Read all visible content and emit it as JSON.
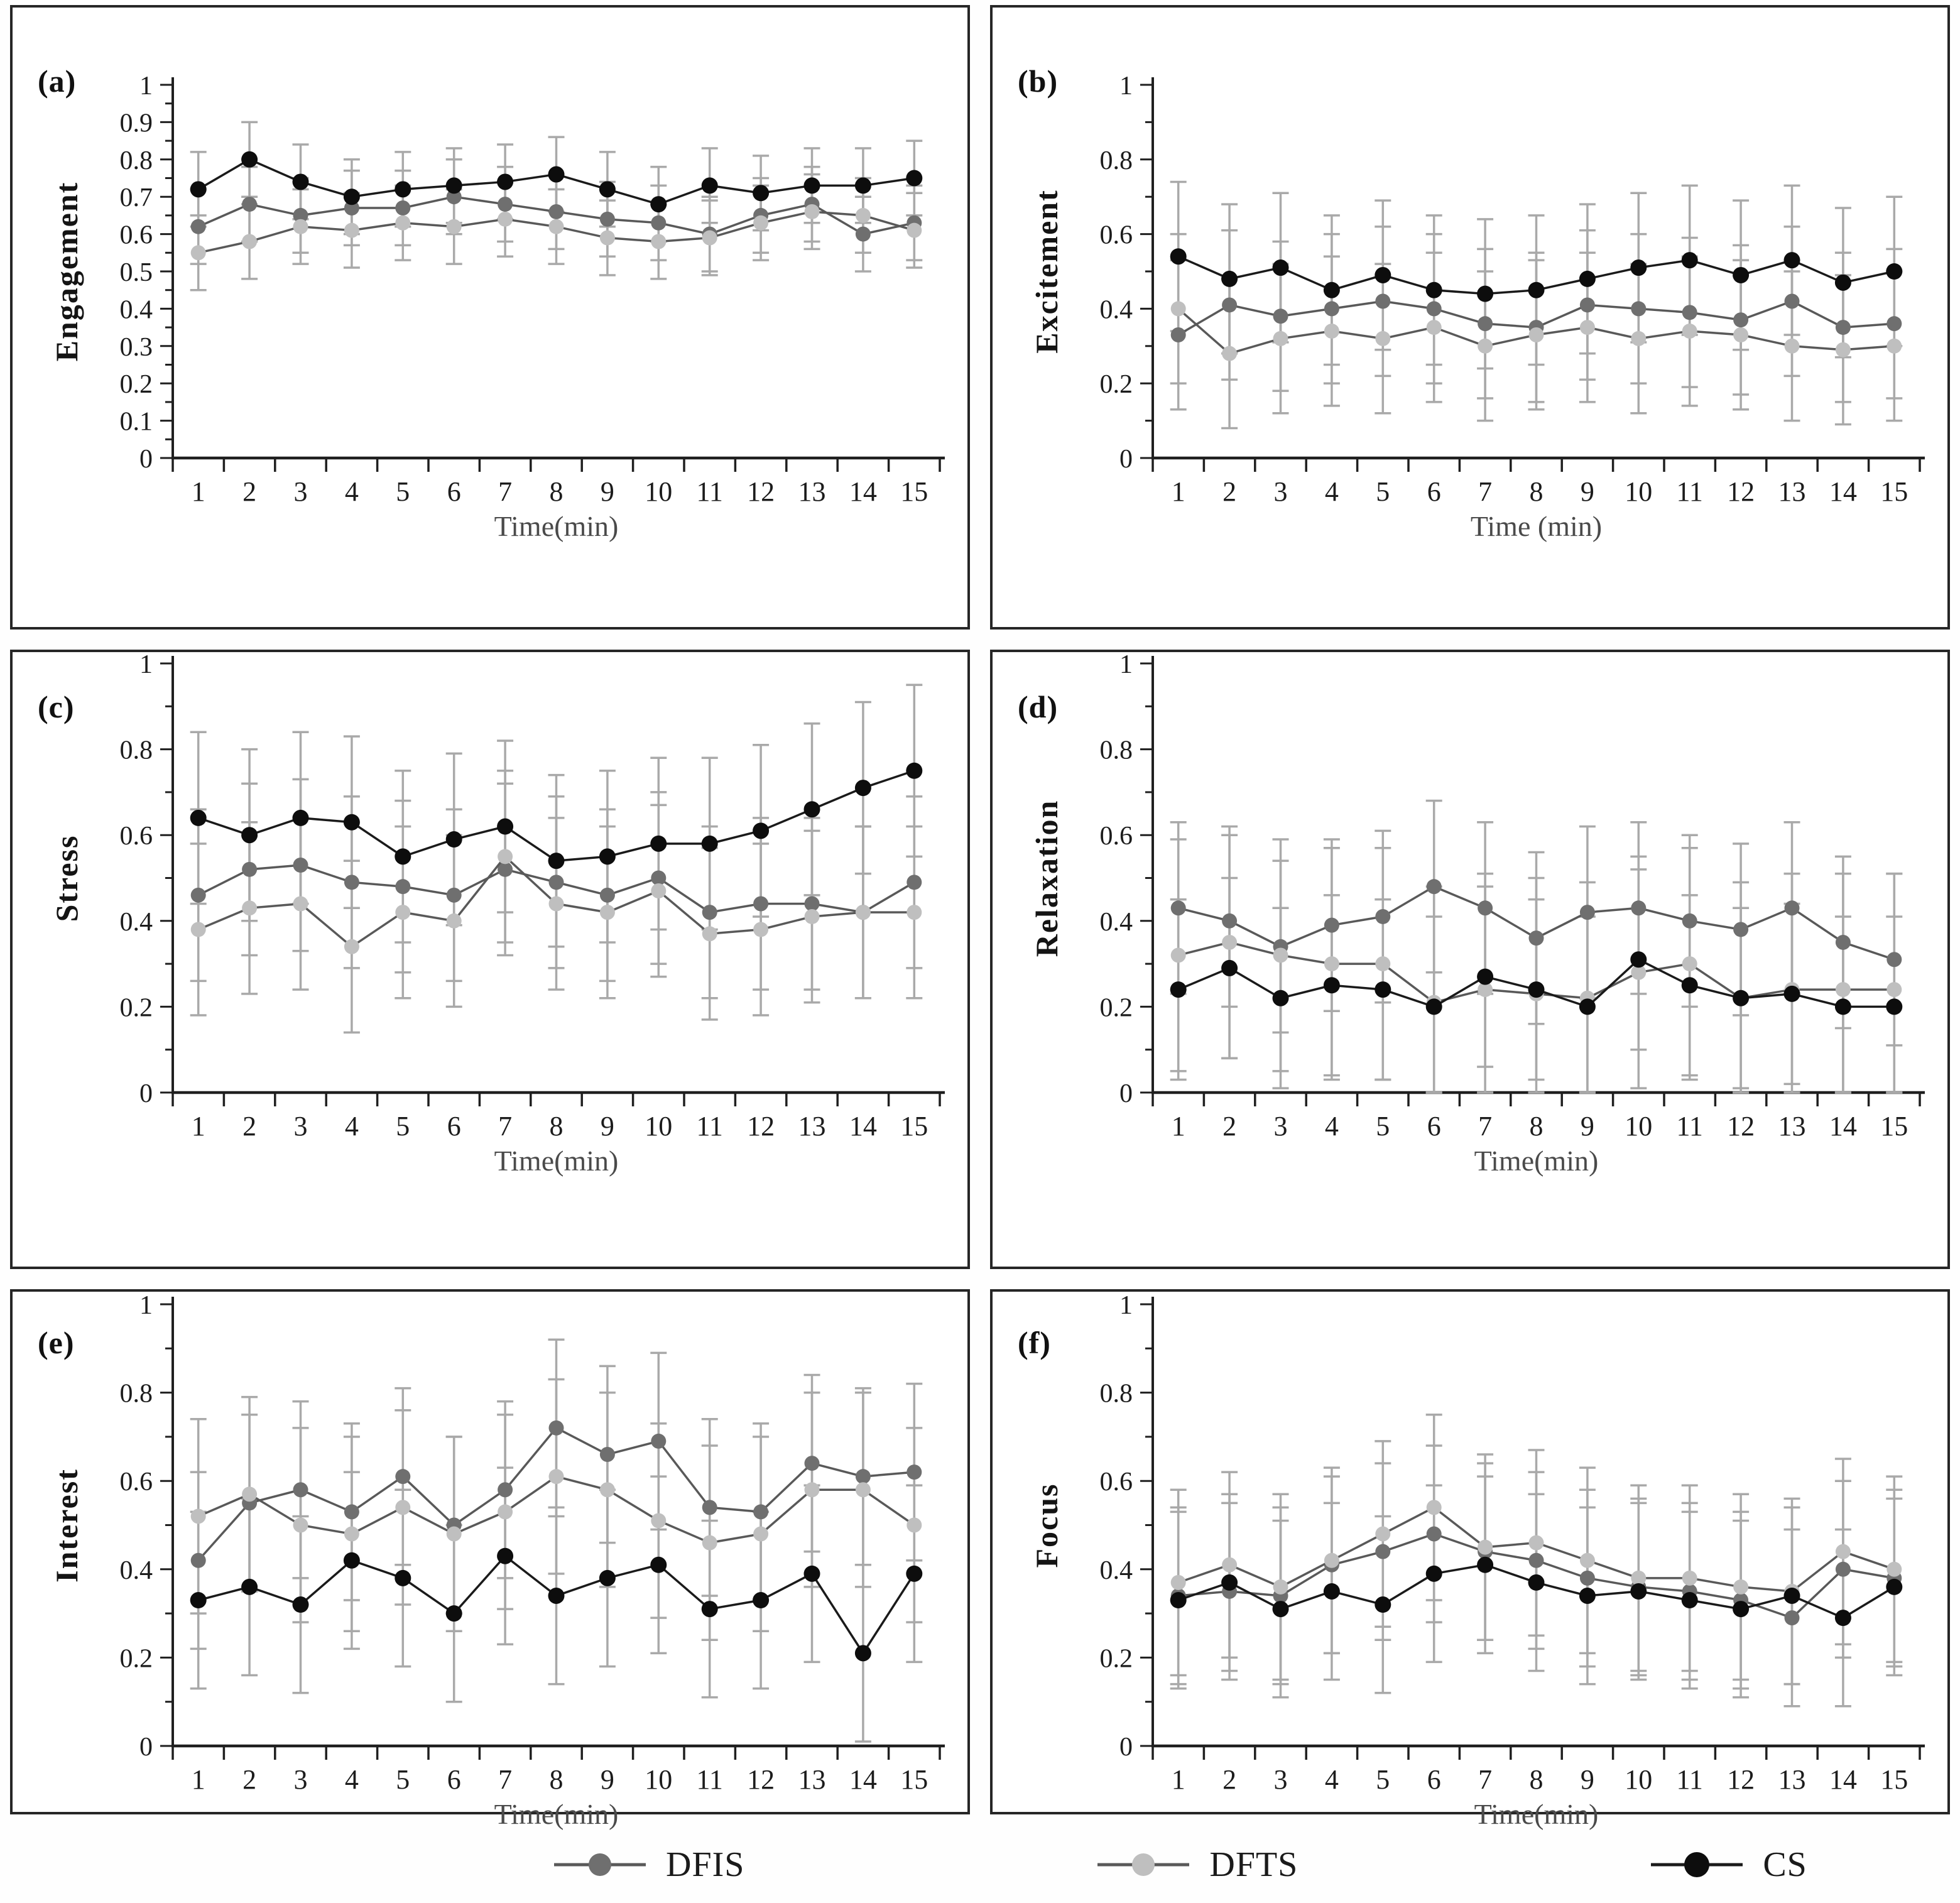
{
  "figure": {
    "background": "#ffffff",
    "border_color": "#262626",
    "axis_color": "#1f1f1f",
    "error_bar_color": "#a9a9a9"
  },
  "legend": {
    "items": [
      {
        "label": "DFIS",
        "marker_color": "#6f6f6f",
        "line_color": "#595959"
      },
      {
        "label": "DFTS",
        "marker_color": "#bfbfbf",
        "line_color": "#595959"
      },
      {
        "label": "CS",
        "marker_color": "#0d0d0d",
        "line_color": "#1a1a1a"
      }
    ]
  },
  "chart_data": [
    {
      "type": "line",
      "panel_label": "(a)",
      "ylabel": "Engagement",
      "xlabel": "Time(min)",
      "x": [
        "1",
        "2",
        "3",
        "4",
        "5",
        "6",
        "7",
        "8",
        "9",
        "10",
        "11",
        "12",
        "13",
        "14",
        "15"
      ],
      "ylim": [
        0,
        1
      ],
      "ytick_step": 0.1,
      "ytick_minor": 0.05,
      "ytick_labels": [
        "0",
        "0.1",
        "0.2",
        "0.3",
        "0.4",
        "0.5",
        "0.6",
        "0.7",
        "0.8",
        "0.9",
        "1"
      ],
      "grid": false,
      "legend_position": "none",
      "series": [
        {
          "name": "DFIS",
          "marker_color": "#6f6f6f",
          "line_color": "#595959",
          "values": [
            0.62,
            0.68,
            0.65,
            0.67,
            0.67,
            0.7,
            0.68,
            0.66,
            0.64,
            0.63,
            0.6,
            0.65,
            0.68,
            0.6,
            0.63
          ],
          "err": 0.1
        },
        {
          "name": "DFTS",
          "marker_color": "#bfbfbf",
          "line_color": "#595959",
          "values": [
            0.55,
            0.58,
            0.62,
            0.61,
            0.63,
            0.62,
            0.64,
            0.62,
            0.59,
            0.58,
            0.59,
            0.63,
            0.66,
            0.65,
            0.61
          ],
          "err": 0.1
        },
        {
          "name": "CS",
          "marker_color": "#0d0d0d",
          "line_color": "#1a1a1a",
          "values": [
            0.72,
            0.8,
            0.74,
            0.7,
            0.72,
            0.73,
            0.74,
            0.76,
            0.72,
            0.68,
            0.73,
            0.71,
            0.73,
            0.73,
            0.75
          ],
          "err": 0.1
        }
      ]
    },
    {
      "type": "line",
      "panel_label": "(b)",
      "ylabel": "Excitement",
      "xlabel": "Time (min)",
      "x": [
        "1",
        "2",
        "3",
        "4",
        "5",
        "6",
        "7",
        "8",
        "9",
        "10",
        "11",
        "12",
        "13",
        "14",
        "15"
      ],
      "ylim": [
        0,
        1
      ],
      "ytick_step": 0.2,
      "ytick_minor": 0.1,
      "ytick_labels": [
        "0",
        "0.2",
        "0.4",
        "0.6",
        "0.8",
        "1"
      ],
      "grid": false,
      "legend_position": "none",
      "series": [
        {
          "name": "DFIS",
          "marker_color": "#6f6f6f",
          "line_color": "#595959",
          "values": [
            0.33,
            0.41,
            0.38,
            0.4,
            0.42,
            0.4,
            0.36,
            0.35,
            0.41,
            0.4,
            0.39,
            0.37,
            0.42,
            0.35,
            0.36
          ],
          "err": 0.2
        },
        {
          "name": "DFTS",
          "marker_color": "#bfbfbf",
          "line_color": "#595959",
          "values": [
            0.4,
            0.28,
            0.32,
            0.34,
            0.32,
            0.35,
            0.3,
            0.33,
            0.35,
            0.32,
            0.34,
            0.33,
            0.3,
            0.29,
            0.3
          ],
          "err": 0.2
        },
        {
          "name": "CS",
          "marker_color": "#0d0d0d",
          "line_color": "#1a1a1a",
          "values": [
            0.54,
            0.48,
            0.51,
            0.45,
            0.49,
            0.45,
            0.44,
            0.45,
            0.48,
            0.51,
            0.53,
            0.49,
            0.53,
            0.47,
            0.5
          ],
          "err": 0.2
        }
      ]
    },
    {
      "type": "line",
      "panel_label": "(c)",
      "ylabel": "Stress",
      "xlabel": "Time(min)",
      "x": [
        "1",
        "2",
        "3",
        "4",
        "5",
        "6",
        "7",
        "8",
        "9",
        "10",
        "11",
        "12",
        "13",
        "14",
        "15"
      ],
      "ylim": [
        0,
        1
      ],
      "ytick_step": 0.2,
      "ytick_minor": 0.1,
      "ytick_labels": [
        "0",
        "0.2",
        "0.4",
        "0.6",
        "0.8",
        "1"
      ],
      "grid": false,
      "legend_position": "none",
      "series": [
        {
          "name": "DFIS",
          "marker_color": "#6f6f6f",
          "line_color": "#595959",
          "values": [
            0.46,
            0.52,
            0.53,
            0.49,
            0.48,
            0.46,
            0.52,
            0.49,
            0.46,
            0.5,
            0.42,
            0.44,
            0.44,
            0.42,
            0.49
          ],
          "err": 0.2
        },
        {
          "name": "DFTS",
          "marker_color": "#bfbfbf",
          "line_color": "#595959",
          "values": [
            0.38,
            0.43,
            0.44,
            0.34,
            0.42,
            0.4,
            0.55,
            0.44,
            0.42,
            0.47,
            0.37,
            0.38,
            0.41,
            0.42,
            0.42
          ],
          "err": 0.2
        },
        {
          "name": "CS",
          "marker_color": "#0d0d0d",
          "line_color": "#1a1a1a",
          "values": [
            0.64,
            0.6,
            0.64,
            0.63,
            0.55,
            0.59,
            0.62,
            0.54,
            0.55,
            0.58,
            0.58,
            0.61,
            0.66,
            0.71,
            0.75
          ],
          "err": 0.2
        }
      ]
    },
    {
      "type": "line",
      "panel_label": "(d)",
      "ylabel": "Relaxation",
      "xlabel": "Time(min)",
      "x": [
        "1",
        "2",
        "3",
        "4",
        "5",
        "6",
        "7",
        "8",
        "9",
        "10",
        "11",
        "12",
        "13",
        "14",
        "15"
      ],
      "ylim": [
        0,
        1
      ],
      "ytick_step": 0.2,
      "ytick_minor": 0.1,
      "ytick_labels": [
        "0",
        "0.2",
        "0.4",
        "0.6",
        "0.8",
        "1"
      ],
      "grid": false,
      "legend_position": "none",
      "series": [
        {
          "name": "DFIS",
          "marker_color": "#6f6f6f",
          "line_color": "#595959",
          "values": [
            0.43,
            0.4,
            0.34,
            0.39,
            0.41,
            0.48,
            0.43,
            0.36,
            0.42,
            0.43,
            0.4,
            0.38,
            0.43,
            0.35,
            0.31
          ],
          "err": 0.2
        },
        {
          "name": "DFTS",
          "marker_color": "#bfbfbf",
          "line_color": "#595959",
          "values": [
            0.32,
            0.35,
            0.32,
            0.3,
            0.3,
            0.21,
            0.24,
            0.23,
            0.22,
            0.28,
            0.3,
            0.22,
            0.24,
            0.24,
            0.24
          ],
          "err": 0.27
        },
        {
          "name": "CS",
          "marker_color": "#0d0d0d",
          "line_color": "#1a1a1a",
          "values": [
            0.24,
            0.29,
            0.22,
            0.25,
            0.24,
            0.2,
            0.27,
            0.24,
            0.2,
            0.31,
            0.25,
            0.22,
            0.23,
            0.2,
            0.2
          ],
          "err": 0.21
        }
      ]
    },
    {
      "type": "line",
      "panel_label": "(e)",
      "ylabel": "Interest",
      "xlabel": "Time(min)",
      "x": [
        "1",
        "2",
        "3",
        "4",
        "5",
        "6",
        "7",
        "8",
        "9",
        "10",
        "11",
        "12",
        "13",
        "14",
        "15"
      ],
      "ylim": [
        0,
        1
      ],
      "ytick_step": 0.2,
      "ytick_minor": 0.1,
      "ytick_labels": [
        "0",
        "0.2",
        "0.4",
        "0.6",
        "0.8",
        "1"
      ],
      "grid": false,
      "legend_position": "none",
      "series": [
        {
          "name": "DFIS",
          "marker_color": "#6f6f6f",
          "line_color": "#595959",
          "values": [
            0.42,
            0.55,
            0.58,
            0.53,
            0.61,
            0.5,
            0.58,
            0.72,
            0.66,
            0.69,
            0.54,
            0.53,
            0.64,
            0.61,
            0.62
          ],
          "err": 0.2
        },
        {
          "name": "DFTS",
          "marker_color": "#bfbfbf",
          "line_color": "#595959",
          "values": [
            0.52,
            0.57,
            0.5,
            0.48,
            0.54,
            0.48,
            0.53,
            0.61,
            0.58,
            0.51,
            0.46,
            0.48,
            0.58,
            0.58,
            0.5
          ],
          "err": 0.22
        },
        {
          "name": "CS",
          "marker_color": "#0d0d0d",
          "line_color": "#1a1a1a",
          "values": [
            0.33,
            0.36,
            0.32,
            0.42,
            0.38,
            0.3,
            0.43,
            0.34,
            0.38,
            0.41,
            0.31,
            0.33,
            0.39,
            0.21,
            0.39
          ],
          "err": 0.2
        }
      ]
    },
    {
      "type": "line",
      "panel_label": "(f)",
      "ylabel": "Focus",
      "xlabel": "Time(min)",
      "x": [
        "1",
        "2",
        "3",
        "4",
        "5",
        "6",
        "7",
        "8",
        "9",
        "10",
        "11",
        "12",
        "13",
        "14",
        "15"
      ],
      "ylim": [
        0,
        1
      ],
      "ytick_step": 0.2,
      "ytick_minor": 0.1,
      "ytick_labels": [
        "0",
        "0.2",
        "0.4",
        "0.6",
        "0.8",
        "1"
      ],
      "grid": false,
      "legend_position": "none",
      "series": [
        {
          "name": "DFIS",
          "marker_color": "#6f6f6f",
          "line_color": "#595959",
          "values": [
            0.34,
            0.35,
            0.34,
            0.41,
            0.44,
            0.48,
            0.44,
            0.42,
            0.38,
            0.36,
            0.35,
            0.33,
            0.29,
            0.4,
            0.38
          ],
          "err": 0.2
        },
        {
          "name": "DFTS",
          "marker_color": "#bfbfbf",
          "line_color": "#595959",
          "values": [
            0.37,
            0.41,
            0.36,
            0.42,
            0.48,
            0.54,
            0.45,
            0.46,
            0.42,
            0.38,
            0.38,
            0.36,
            0.35,
            0.44,
            0.4
          ],
          "err": 0.21
        },
        {
          "name": "CS",
          "marker_color": "#0d0d0d",
          "line_color": "#1a1a1a",
          "values": [
            0.33,
            0.37,
            0.31,
            0.35,
            0.32,
            0.39,
            0.41,
            0.37,
            0.34,
            0.35,
            0.33,
            0.31,
            0.34,
            0.29,
            0.36
          ],
          "err": 0.2
        }
      ]
    }
  ]
}
